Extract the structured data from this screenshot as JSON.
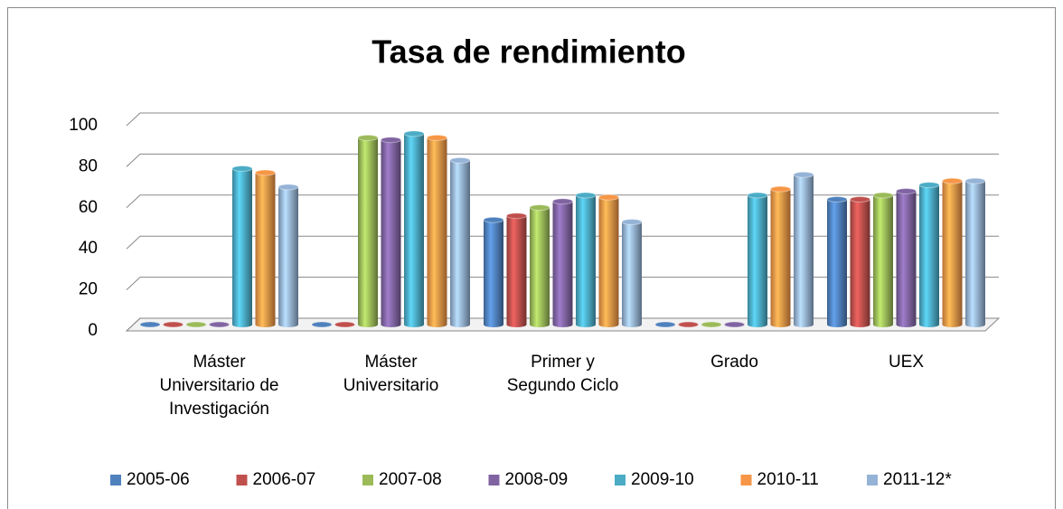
{
  "chart_data": {
    "type": "bar3d",
    "title": "Tasa de rendimiento",
    "categories": [
      "Máster Universitario de Investigación",
      "Máster Universitario",
      "Primer y Segundo Ciclo",
      "Grado",
      "UEX"
    ],
    "series": [
      {
        "name": "2005-06",
        "color": "#4f81bd",
        "values": [
          0,
          0,
          51,
          0,
          61
        ]
      },
      {
        "name": "2006-07",
        "color": "#c0504d",
        "values": [
          0,
          0,
          53,
          0,
          61
        ]
      },
      {
        "name": "2007-08",
        "color": "#9bbb59",
        "values": [
          0,
          91,
          57,
          0,
          63
        ]
      },
      {
        "name": "2008-09",
        "color": "#8064a2",
        "values": [
          0,
          90,
          60,
          0,
          65
        ]
      },
      {
        "name": "2009-10",
        "color": "#4bacc6",
        "values": [
          76,
          93,
          63,
          63,
          68
        ]
      },
      {
        "name": "2010-11",
        "color": "#f79646",
        "values": [
          74,
          91,
          62,
          66,
          70
        ]
      },
      {
        "name": "2011-12*",
        "color": "#95b3d7",
        "values": [
          67,
          80,
          50,
          73,
          70
        ]
      }
    ],
    "ylim": [
      0,
      100
    ],
    "yticks": [
      0,
      20,
      40,
      60,
      80,
      100
    ],
    "grid": true
  }
}
